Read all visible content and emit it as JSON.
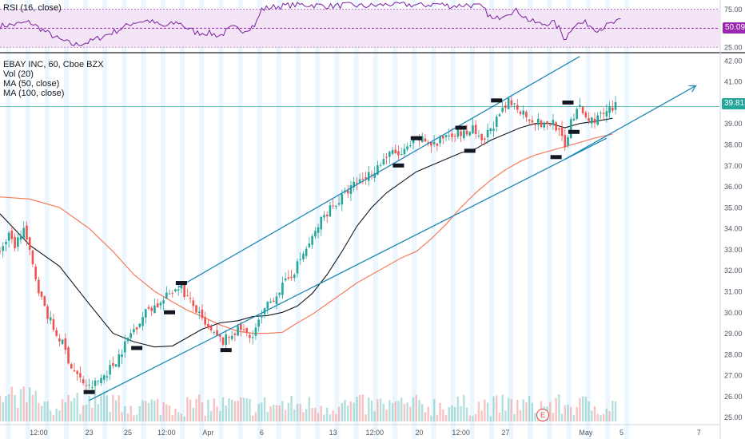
{
  "chart_data": {
    "type": "candlestick",
    "symbol_title": "EBAY INC, 60, Cboe BZX",
    "indicators": [
      "Vol (20)",
      "MA (50, close)",
      "MA (100, close)"
    ],
    "rsi_label": "RSI (16, close)",
    "rsi_axis_ticks": [
      "75.00",
      "25.00"
    ],
    "rsi_current": "50.09",
    "rsi_midline": 50,
    "price_current": "39.81",
    "y_axis_ticks": [
      "42.00",
      "41.00",
      "40.00",
      "39.00",
      "38.00",
      "37.00",
      "36.00",
      "35.00",
      "34.00",
      "33.00",
      "32.00",
      "31.00",
      "30.00",
      "29.00",
      "28.00",
      "27.00",
      "26.00",
      "25.00"
    ],
    "ylim": [
      24.8,
      42.3
    ],
    "x_axis_ticks": [
      {
        "label": "12:00",
        "slot": 13
      },
      {
        "label": "23",
        "slot": 30
      },
      {
        "label": "25",
        "slot": 43
      },
      {
        "label": "12:00",
        "slot": 56
      },
      {
        "label": "Apr",
        "slot": 70
      },
      {
        "label": "6",
        "slot": 88
      },
      {
        "label": "13",
        "slot": 112
      },
      {
        "label": "12:00",
        "slot": 126
      },
      {
        "label": "20",
        "slot": 141
      },
      {
        "label": "12:00",
        "slot": 155
      },
      {
        "label": "27",
        "slot": 170
      },
      {
        "label": "May",
        "slot": 197
      },
      {
        "label": "5",
        "slot": 209
      },
      {
        "label": "7",
        "slot": 235
      }
    ],
    "price_path": [
      [
        0,
        33.0
      ],
      [
        3,
        33.6
      ],
      [
        5,
        33.2
      ],
      [
        8,
        34.0
      ],
      [
        11,
        32.2
      ],
      [
        14,
        30.6
      ],
      [
        18,
        29.2
      ],
      [
        21,
        28.5
      ],
      [
        24,
        27.4
      ],
      [
        27,
        26.8
      ],
      [
        30,
        26.4
      ],
      [
        32,
        26.6
      ],
      [
        35,
        27.0
      ],
      [
        38,
        27.5
      ],
      [
        41,
        28.2
      ],
      [
        44,
        29.0
      ],
      [
        47,
        29.6
      ],
      [
        50,
        30.2
      ],
      [
        54,
        30.4
      ],
      [
        57,
        30.9
      ],
      [
        60,
        31.3
      ],
      [
        63,
        30.7
      ],
      [
        66,
        30.1
      ],
      [
        69,
        29.3
      ],
      [
        72,
        28.9
      ],
      [
        75,
        28.6
      ],
      [
        78,
        29.0
      ],
      [
        81,
        29.2
      ],
      [
        84,
        28.8
      ],
      [
        87,
        29.5
      ],
      [
        90,
        30.3
      ],
      [
        93,
        30.9
      ],
      [
        96,
        31.4
      ],
      [
        99,
        32.0
      ],
      [
        102,
        32.8
      ],
      [
        105,
        33.5
      ],
      [
        108,
        34.4
      ],
      [
        111,
        35.0
      ],
      [
        114,
        35.3
      ],
      [
        117,
        35.8
      ],
      [
        120,
        36.2
      ],
      [
        123,
        36.5
      ],
      [
        126,
        36.8
      ],
      [
        129,
        37.3
      ],
      [
        132,
        37.6
      ],
      [
        135,
        37.5
      ],
      [
        138,
        37.9
      ],
      [
        141,
        38.3
      ],
      [
        144,
        38.1
      ],
      [
        147,
        38.0
      ],
      [
        150,
        38.5
      ],
      [
        153,
        38.6
      ],
      [
        156,
        38.5
      ],
      [
        159,
        38.7
      ],
      [
        162,
        38.0
      ],
      [
        165,
        38.8
      ],
      [
        168,
        39.3
      ],
      [
        171,
        40.0
      ],
      [
        174,
        39.8
      ],
      [
        177,
        39.4
      ],
      [
        180,
        39.1
      ],
      [
        183,
        38.9
      ],
      [
        186,
        39.1
      ],
      [
        188,
        38.6
      ],
      [
        190,
        37.8
      ],
      [
        192,
        39.2
      ],
      [
        195,
        39.7
      ],
      [
        198,
        39.1
      ],
      [
        201,
        39.3
      ],
      [
        204,
        39.5
      ],
      [
        207,
        39.8
      ]
    ],
    "ma50": [
      [
        0,
        34.7
      ],
      [
        10,
        33.2
      ],
      [
        20,
        32.2
      ],
      [
        30,
        30.4
      ],
      [
        38,
        29.0
      ],
      [
        45,
        28.6
      ],
      [
        52,
        28.35
      ],
      [
        58,
        28.4
      ],
      [
        63,
        28.8
      ],
      [
        68,
        29.2
      ],
      [
        74,
        29.5
      ],
      [
        80,
        29.6
      ],
      [
        85,
        29.8
      ],
      [
        90,
        29.85
      ],
      [
        95,
        30.0
      ],
      [
        100,
        30.3
      ],
      [
        105,
        30.9
      ],
      [
        110,
        31.8
      ],
      [
        115,
        32.9
      ],
      [
        120,
        34.1
      ],
      [
        125,
        35.0
      ],
      [
        130,
        35.7
      ],
      [
        135,
        36.2
      ],
      [
        140,
        36.7
      ],
      [
        145,
        37.0
      ],
      [
        150,
        37.3
      ],
      [
        155,
        37.6
      ],
      [
        160,
        37.8
      ],
      [
        165,
        38.2
      ],
      [
        170,
        38.5
      ],
      [
        175,
        38.8
      ],
      [
        180,
        39.0
      ],
      [
        185,
        39.0
      ],
      [
        190,
        38.8
      ],
      [
        195,
        39.0
      ],
      [
        200,
        39.1
      ],
      [
        206,
        39.25
      ]
    ],
    "ma100": [
      [
        0,
        35.5
      ],
      [
        10,
        35.4
      ],
      [
        20,
        35.0
      ],
      [
        30,
        34.0
      ],
      [
        38,
        32.9
      ],
      [
        45,
        31.8
      ],
      [
        52,
        31.0
      ],
      [
        58,
        30.5
      ],
      [
        63,
        30.1
      ],
      [
        68,
        29.8
      ],
      [
        74,
        29.4
      ],
      [
        80,
        29.1
      ],
      [
        85,
        29.0
      ],
      [
        90,
        29.0
      ],
      [
        95,
        29.05
      ],
      [
        100,
        29.5
      ],
      [
        105,
        29.9
      ],
      [
        110,
        30.4
      ],
      [
        115,
        30.9
      ],
      [
        120,
        31.4
      ],
      [
        125,
        31.8
      ],
      [
        130,
        32.2
      ],
      [
        135,
        32.6
      ],
      [
        140,
        32.9
      ],
      [
        145,
        33.5
      ],
      [
        150,
        34.2
      ],
      [
        155,
        35.0
      ],
      [
        160,
        35.7
      ],
      [
        165,
        36.3
      ],
      [
        170,
        36.8
      ],
      [
        175,
        37.2
      ],
      [
        180,
        37.5
      ],
      [
        185,
        37.7
      ],
      [
        190,
        37.9
      ],
      [
        195,
        38.1
      ],
      [
        200,
        38.3
      ],
      [
        206,
        38.5
      ]
    ],
    "rsi_path": [
      [
        0,
        53
      ],
      [
        5,
        55
      ],
      [
        10,
        58
      ],
      [
        15,
        46
      ],
      [
        20,
        35
      ],
      [
        25,
        28
      ],
      [
        30,
        32
      ],
      [
        35,
        40
      ],
      [
        40,
        48
      ],
      [
        45,
        58
      ],
      [
        50,
        60
      ],
      [
        55,
        52
      ],
      [
        60,
        58
      ],
      [
        63,
        50
      ],
      [
        66,
        44
      ],
      [
        70,
        44
      ],
      [
        74,
        40
      ],
      [
        78,
        51
      ],
      [
        82,
        47
      ],
      [
        86,
        55
      ],
      [
        88,
        75
      ],
      [
        92,
        78
      ],
      [
        97,
        80
      ],
      [
        102,
        81
      ],
      [
        107,
        80
      ],
      [
        112,
        79
      ],
      [
        117,
        81
      ],
      [
        122,
        79
      ],
      [
        127,
        80
      ],
      [
        132,
        82
      ],
      [
        137,
        81
      ],
      [
        142,
        80
      ],
      [
        147,
        82
      ],
      [
        152,
        79
      ],
      [
        157,
        81
      ],
      [
        162,
        78
      ],
      [
        166,
        60
      ],
      [
        170,
        70
      ],
      [
        174,
        73
      ],
      [
        178,
        60
      ],
      [
        182,
        55
      ],
      [
        186,
        58
      ],
      [
        188,
        50
      ],
      [
        190,
        35
      ],
      [
        193,
        55
      ],
      [
        197,
        57
      ],
      [
        201,
        48
      ],
      [
        205,
        55
      ],
      [
        209,
        60
      ]
    ],
    "trend_lines": [
      {
        "name": "channel-upper",
        "from": [
          60,
          31.2
        ],
        "to": [
          195,
          42.2
        ]
      },
      {
        "name": "channel-lower",
        "from": [
          30,
          25.8
        ],
        "to": [
          204,
          38.3
        ]
      },
      {
        "name": "trend-arrow",
        "from": [
          190,
          37.3
        ],
        "to": [
          234,
          40.8
        ]
      }
    ],
    "pivot_marks": [
      [
        30,
        26.2
      ],
      [
        46,
        28.3
      ],
      [
        57,
        30.0
      ],
      [
        61,
        31.4
      ],
      [
        76,
        28.2
      ],
      [
        134,
        37.0
      ],
      [
        140,
        38.3
      ],
      [
        155,
        38.8
      ],
      [
        158,
        37.7
      ],
      [
        167,
        40.1
      ],
      [
        187,
        37.4
      ],
      [
        191,
        40.0
      ],
      [
        193,
        38.6
      ]
    ]
  }
}
